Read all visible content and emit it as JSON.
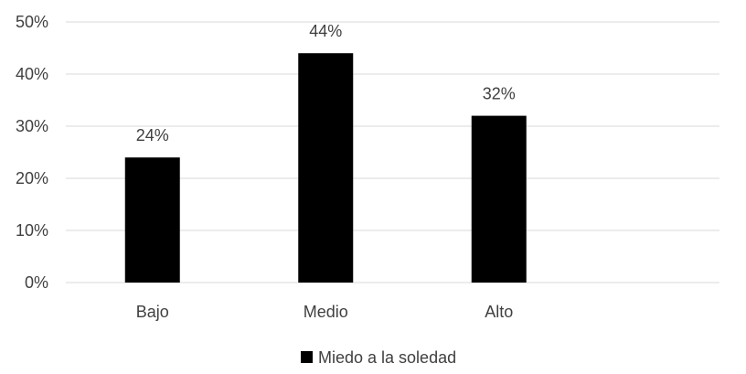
{
  "chart_data": {
    "type": "bar",
    "categories": [
      "Bajo",
      "Medio",
      "Alto"
    ],
    "series": [
      {
        "name": "Miedo a la soledad",
        "values": [
          24,
          44,
          32
        ],
        "labels": [
          "24%",
          "44%",
          "32%"
        ]
      }
    ],
    "ylim": [
      0,
      50
    ],
    "yticks": [
      0,
      10,
      20,
      30,
      40,
      50
    ],
    "ytick_labels": [
      "0%",
      "10%",
      "20%",
      "30%",
      "40%",
      "50%"
    ],
    "grid": true,
    "legend_position": "bottom",
    "colors": {
      "bar": "#000000",
      "grid": "#d9d9d9",
      "text": "#404040"
    }
  }
}
